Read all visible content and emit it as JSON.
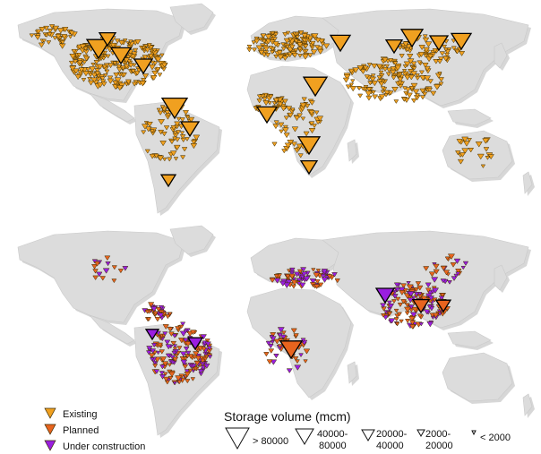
{
  "legend": {
    "status": [
      {
        "label": "Existing",
        "color": "#f0a020"
      },
      {
        "label": "Planned",
        "color": "#e8641e"
      },
      {
        "label": "Under construction",
        "color": "#9a1ee0"
      }
    ],
    "size_title": "Storage volume (mcm)",
    "size_classes": [
      {
        "label_1": "> 80000",
        "label_2": ""
      },
      {
        "label_1": "40000-",
        "label_2": "80000"
      },
      {
        "label_1": "20000-",
        "label_2": "40000"
      },
      {
        "label_1": "2000-",
        "label_2": "20000"
      },
      {
        "label_1": "< 2000",
        "label_2": ""
      }
    ]
  },
  "maps": [
    {
      "panel": "top",
      "status": "Existing"
    },
    {
      "panel": "bottom",
      "status": "Planned and Under construction"
    }
  ]
}
